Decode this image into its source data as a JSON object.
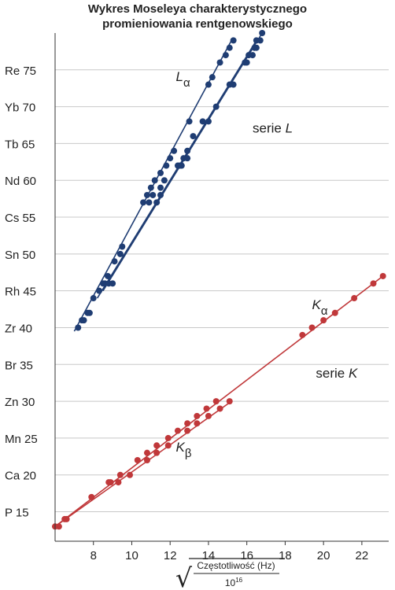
{
  "chart_data": {
    "type": "scatter",
    "title_lines": [
      "Wykres Moseleya charakterystycznego",
      "promieniowania rentgenowskiego"
    ],
    "xlabel": {
      "radical": "√",
      "numerator": "Częstotliwość (Hz)",
      "denominator": "10",
      "denominator_exp": "16"
    },
    "xlim": [
      6,
      23.4
    ],
    "ylim": [
      11,
      80
    ],
    "xticks": [
      8,
      10,
      12,
      14,
      16,
      18,
      20,
      22
    ],
    "yticks": [
      {
        "value": 15,
        "label": "P 15"
      },
      {
        "value": 20,
        "label": "Ca 20"
      },
      {
        "value": 25,
        "label": "Mn 25"
      },
      {
        "value": 30,
        "label": "Zn 30"
      },
      {
        "value": 35,
        "label": "Br 35"
      },
      {
        "value": 40,
        "label": "Zr 40"
      },
      {
        "value": 45,
        "label": "Rh 45"
      },
      {
        "value": 50,
        "label": "Sn 50"
      },
      {
        "value": 55,
        "label": "Cs 55"
      },
      {
        "value": 60,
        "label": "Nd 60"
      },
      {
        "value": 65,
        "label": "Tb 65"
      },
      {
        "value": 70,
        "label": "Yb 70"
      },
      {
        "value": 75,
        "label": "Re 75"
      }
    ],
    "grid": {
      "horizontal": true,
      "vertical": false
    },
    "colors": {
      "L": "#1f3d73",
      "K": "#c0383a",
      "grid": "#c8c8c8",
      "axis": "#333333"
    },
    "annotations": [
      {
        "text": "L",
        "sub": "α",
        "italic": true,
        "x": 12.3,
        "y": 73.5
      },
      {
        "text": "serie ",
        "italic_part": "L",
        "x": 16.3,
        "y": 66.5
      },
      {
        "text": "K",
        "sub": "α",
        "italic": true,
        "x": 19.4,
        "y": 42.5
      },
      {
        "text": "serie ",
        "italic_part": "K",
        "x": 19.6,
        "y": 33.2
      },
      {
        "text": "K",
        "sub": "β",
        "italic": true,
        "x": 12.3,
        "y": 23.2
      }
    ],
    "series": [
      {
        "group": "L",
        "color": "#1f3d73",
        "line": [
          [
            7.0,
            39.5
          ],
          [
            15.2,
            79.0
          ]
        ],
        "points": [
          [
            7.2,
            40
          ],
          [
            7.4,
            41
          ],
          [
            7.5,
            41
          ],
          [
            7.7,
            42
          ],
          [
            7.8,
            42
          ],
          [
            8.0,
            44
          ],
          [
            8.3,
            45
          ],
          [
            8.6,
            46
          ],
          [
            8.75,
            47
          ],
          [
            9.1,
            49
          ],
          [
            9.4,
            50
          ],
          [
            9.5,
            51
          ],
          [
            10.6,
            57
          ],
          [
            10.8,
            58
          ],
          [
            11.0,
            59
          ],
          [
            11.2,
            60
          ],
          [
            11.5,
            61
          ],
          [
            11.8,
            62
          ],
          [
            12.0,
            63
          ],
          [
            12.2,
            64
          ],
          [
            13.0,
            68
          ],
          [
            14.0,
            73
          ],
          [
            14.2,
            74
          ],
          [
            14.6,
            76
          ],
          [
            14.9,
            77
          ],
          [
            15.1,
            78
          ],
          [
            15.3,
            79
          ]
        ]
      },
      {
        "group": "L",
        "color": "#1f3d73",
        "line": [
          [
            8.2,
            44.0
          ],
          [
            16.5,
            79.0
          ]
        ],
        "points": [
          [
            8.5,
            46
          ],
          [
            8.8,
            46
          ],
          [
            9.0,
            46
          ],
          [
            10.9,
            57
          ],
          [
            11.1,
            58
          ],
          [
            11.5,
            59
          ],
          [
            11.7,
            60
          ],
          [
            12.4,
            62
          ],
          [
            12.6,
            62
          ],
          [
            12.7,
            63
          ],
          [
            12.9,
            64
          ],
          [
            13.2,
            66
          ],
          [
            13.7,
            68
          ],
          [
            14.0,
            68
          ],
          [
            14.4,
            70
          ],
          [
            15.1,
            73
          ],
          [
            15.3,
            73
          ],
          [
            15.9,
            76
          ],
          [
            16.1,
            77
          ],
          [
            16.3,
            77
          ],
          [
            16.4,
            78
          ],
          [
            16.5,
            79
          ]
        ]
      },
      {
        "group": "L",
        "color": "#1f3d73",
        "line": [
          [
            8.5,
            45.0
          ],
          [
            16.8,
            80.0
          ]
        ],
        "points": [
          [
            11.3,
            57
          ],
          [
            11.5,
            58
          ],
          [
            12.5,
            62
          ],
          [
            12.9,
            63
          ],
          [
            16.0,
            76
          ],
          [
            16.5,
            78
          ],
          [
            16.7,
            79
          ],
          [
            16.8,
            80
          ]
        ]
      },
      {
        "group": "K",
        "color": "#c0383a",
        "line": [
          [
            6.1,
            13.2
          ],
          [
            23.1,
            47.0
          ]
        ],
        "points": [
          [
            6.2,
            13
          ],
          [
            6.6,
            14
          ],
          [
            7.9,
            17
          ],
          [
            8.9,
            19
          ],
          [
            9.4,
            20
          ],
          [
            9.9,
            20
          ],
          [
            10.3,
            22
          ],
          [
            10.8,
            23
          ],
          [
            11.3,
            24
          ],
          [
            11.9,
            25
          ],
          [
            12.4,
            26
          ],
          [
            12.9,
            27
          ],
          [
            13.4,
            28
          ],
          [
            13.9,
            29
          ],
          [
            14.4,
            30
          ],
          [
            18.9,
            39
          ],
          [
            19.4,
            40
          ],
          [
            20.0,
            41
          ],
          [
            20.6,
            42
          ],
          [
            21.6,
            44
          ],
          [
            22.6,
            46
          ],
          [
            23.1,
            47
          ]
        ]
      },
      {
        "group": "K",
        "color": "#c0383a",
        "line": [
          [
            6.0,
            13.0
          ],
          [
            15.2,
            30.0
          ]
        ],
        "points": [
          [
            6.0,
            13
          ],
          [
            6.5,
            14
          ],
          [
            8.8,
            19
          ],
          [
            9.3,
            19
          ],
          [
            10.8,
            22
          ],
          [
            11.3,
            23
          ],
          [
            11.9,
            24
          ],
          [
            12.9,
            26
          ],
          [
            13.4,
            27
          ],
          [
            14.0,
            28
          ],
          [
            14.6,
            29
          ],
          [
            15.1,
            30
          ]
        ]
      }
    ]
  }
}
